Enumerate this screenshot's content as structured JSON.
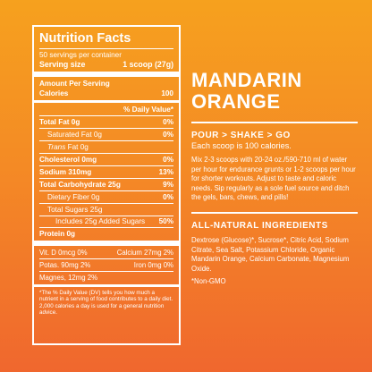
{
  "nutrition": {
    "title": "Nutrition Facts",
    "servings": "50 servings per container",
    "serving_size_label": "Serving size",
    "serving_size_value": "1 scoop (27g)",
    "amount_per_serving": "Amount Per Serving",
    "calories_label": "Calories",
    "calories_value": "100",
    "dv_header": "% Daily Value*",
    "rows": {
      "total_fat": {
        "label": "Total Fat 0g",
        "dv": "0%"
      },
      "saturated_fat": {
        "label": "Saturated Fat 0g",
        "dv": "0%"
      },
      "trans_fat_word": "Trans",
      "trans_fat_rest": " Fat 0g",
      "cholesterol": {
        "label": "Cholesterol 0mg",
        "dv": "0%"
      },
      "sodium": {
        "label": "Sodium 310mg",
        "dv": "13%"
      },
      "total_carb": {
        "label": "Total Carbohydrate 25g",
        "dv": "9%"
      },
      "dietary_fiber": {
        "label": "Dietary Fiber 0g",
        "dv": "0%"
      },
      "total_sugars": {
        "label": "Total Sugars 25g"
      },
      "added_sugars": {
        "label": "Includes 25g Added Sugars",
        "dv": "50%"
      },
      "protein": {
        "label": "Protein 0g"
      }
    },
    "vitamins": {
      "vit_d": "Vit. D 0mcg 0%",
      "calcium": "Calcium 27mg 2%",
      "potas": "Potas. 90mg 2%",
      "iron": "Iron 0mg 0%",
      "magnes": "Magnes, 12mg 2%"
    },
    "footnote": "*The % Daily Value (DV) tells you how much a nutrient in a serving of food contributes to a daily diet. 2,000 calories a day is used for a general nutrition advice."
  },
  "product": {
    "title_line1": "MANDARIN",
    "title_line2": "ORANGE",
    "section1_head": "POUR > SHAKE > GO",
    "section1_sub": "Each scoop is 100 calories.",
    "section1_body": "Mix 2-3 scoops with 20-24 oz./590-710 ml of water per hour for endurance grunts or 1-2 scoops per hour for shorter workouts. Adjust to taste and caloric needs. Sip regularly as a sole fuel source and ditch the gels, bars, chews, and pills!",
    "section2_head": "ALL-NATURAL INGREDIENTS",
    "section2_body": "Dextrose (Glucose)*, Sucrose*, Citric Acid, Sodium Citrate, Sea Salt, Potassium Chloride, Organic Mandarin Orange, Calcium Carbonate, Magnesium Oxide.",
    "nongmo": "*Non-GMO"
  }
}
